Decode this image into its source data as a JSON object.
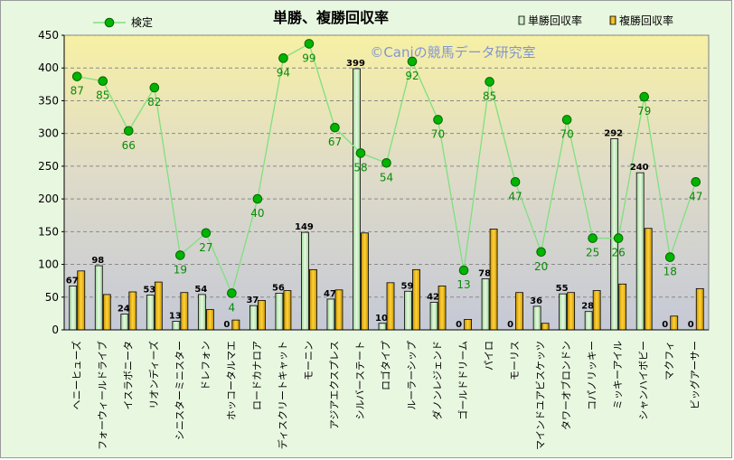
{
  "chart_data": {
    "type": "bar",
    "title": "単勝、複勝回収率",
    "watermark": "©Caniの競馬データ研究室",
    "ylim": [
      0,
      450
    ],
    "yticks": [
      0,
      50,
      100,
      150,
      200,
      250,
      300,
      350,
      400,
      450
    ],
    "grid": true,
    "legend_placement": "top",
    "categories": [
      "ヘニーヒューズ",
      "フォーウィールドライブ",
      "イスラボニータ",
      "リオンディーズ",
      "シニスターミニスター",
      "ドレフォン",
      "ホッコータルマエ",
      "ロードカナロア",
      "ディスクリートキャット",
      "モーニン",
      "アジアエクスプレス",
      "シルバーステート",
      "ロゴタイプ",
      "ルーラーシップ",
      "ダノンレジェンド",
      "ゴールドドリーム",
      "パイロ",
      "モーリス",
      "マインドユアビスケッツ",
      "タワーオブロンドン",
      "コパノリッキー",
      "ミッキーアイル",
      "シャンハイボビー",
      "マクフィ",
      "ビッグアーサー"
    ],
    "series": [
      {
        "name": "単勝回収率",
        "kind": "bar",
        "color": "#c8ecc0",
        "values": [
          67,
          98,
          24,
          53,
          13,
          54,
          0,
          37,
          56,
          149,
          47,
          399,
          10,
          59,
          42,
          0,
          78,
          0,
          36,
          55,
          28,
          292,
          240,
          0,
          0
        ],
        "labels": [
          "67",
          "98",
          "24",
          "53",
          "13",
          "54",
          "0",
          "37",
          "56",
          "149",
          "47",
          "399",
          "10",
          "59",
          "42",
          "0",
          "78",
          "0",
          "36",
          "55",
          "28",
          "292",
          "240",
          "0",
          "0"
        ]
      },
      {
        "name": "複勝回収率",
        "kind": "bar",
        "color": "#e8b400",
        "values": [
          90,
          54,
          58,
          73,
          57,
          31,
          15,
          45,
          60,
          92,
          61,
          148,
          72,
          92,
          67,
          16,
          154,
          57,
          10,
          57,
          60,
          70,
          155,
          21,
          63
        ]
      },
      {
        "name": "検定",
        "kind": "line",
        "color": "#00b000",
        "values": [
          387,
          380,
          304,
          370,
          114,
          148,
          56,
          200,
          415,
          437,
          309,
          270,
          255,
          410,
          321,
          91,
          379,
          226,
          119,
          321,
          140,
          140,
          356,
          111,
          226
        ],
        "labels": [
          "87",
          "85",
          "66",
          "82",
          "19",
          "27",
          "4",
          "40",
          "94",
          "99",
          "67",
          "58",
          "54",
          "92",
          "70",
          "13",
          "85",
          "47",
          "20",
          "70",
          "25",
          "26",
          "79",
          "18",
          "47"
        ]
      }
    ]
  }
}
